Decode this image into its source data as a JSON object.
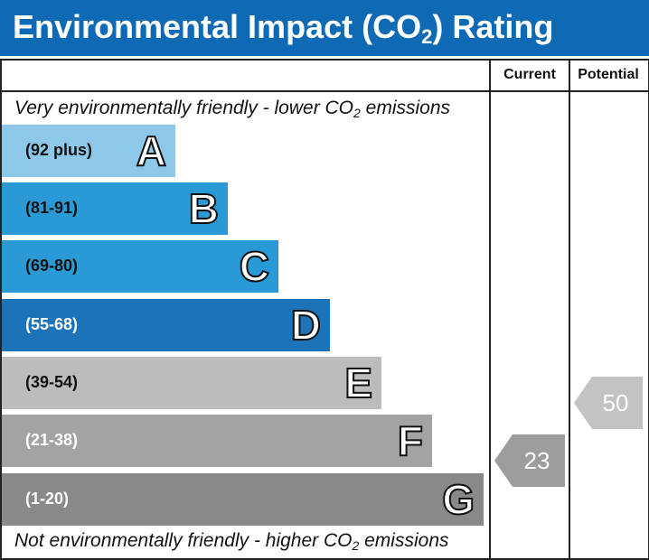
{
  "header": {
    "title_pre": "Environmental Impact (CO",
    "title_sub": "2",
    "title_post": ") Rating"
  },
  "columns": {
    "current": "Current",
    "potential": "Potential"
  },
  "notes": {
    "top_pre": "Very environmentally friendly - lower CO",
    "top_sub": "2",
    "top_post": " emissions",
    "bottom_pre": "Not environmentally friendly - higher CO",
    "bottom_sub": "2",
    "bottom_post": " emissions"
  },
  "chart_data": {
    "type": "bar",
    "categories": [
      "A",
      "B",
      "C",
      "D",
      "E",
      "F",
      "G"
    ],
    "ranges": [
      "(92 plus)",
      "(81-91)",
      "(69-80)",
      "(55-68)",
      "(39-54)",
      "(21-38)",
      "(1-20)"
    ],
    "colors": [
      "#8dc8e9",
      "#2a9ad6",
      "#2a9ad6",
      "#1c73b8",
      "#bdbcba",
      "#a4a3a2",
      "#8a8989"
    ],
    "range_text_colors": [
      "#111111",
      "#111111",
      "#111111",
      "#ffffff",
      "#111111",
      "#ffffff",
      "#ffffff"
    ],
    "current": {
      "value": 23,
      "band": "F",
      "color": "#9e9d9c"
    },
    "potential": {
      "value": 50,
      "band": "E",
      "color": "#c4c3c1"
    }
  }
}
